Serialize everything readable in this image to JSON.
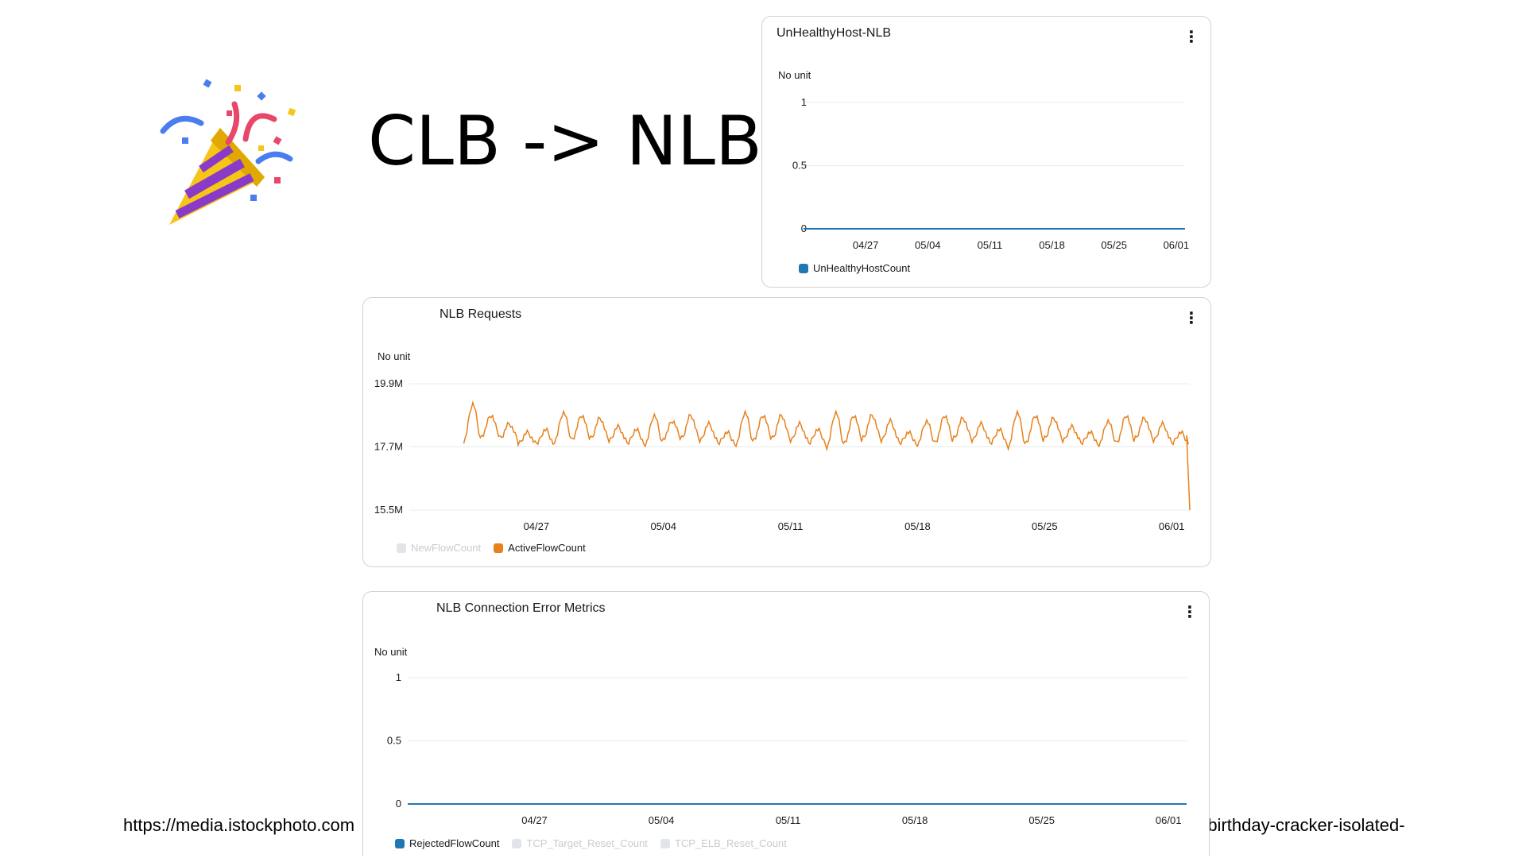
{
  "slide": {
    "title": "CLB -> NLB",
    "footnote_left": "https://media.istockphoto.com",
    "footnote_right": "-birthday-cracker-isolated-"
  },
  "colors": {
    "blue": "#1f77b4",
    "orange": "#e8811c",
    "grid": "#e9ebed",
    "text": "#16191f"
  },
  "icons": {
    "party_popper": "party-popper-icon",
    "menu": "kebab-menu-icon"
  },
  "panels": {
    "unhealthy": {
      "title": "UnHealthyHost-NLB",
      "unit": "No unit",
      "menu_glyph": "⋮"
    },
    "requests": {
      "title": "NLB Requests",
      "unit": "No unit",
      "menu_glyph": "⋮"
    },
    "errors": {
      "title": "NLB Connection Error Metrics",
      "unit": "No unit",
      "menu_glyph": "⋮"
    }
  },
  "chart_data": [
    {
      "type": "line",
      "title": "UnHealthyHost-NLB",
      "ylabel": "No unit",
      "x_ticks": [
        "04/27",
        "05/04",
        "05/11",
        "05/18",
        "05/25",
        "06/01"
      ],
      "y_ticks": [
        "1",
        "0.5",
        "0"
      ],
      "ylim": [
        0,
        1
      ],
      "grid": true,
      "legend": "bottom-left",
      "series": [
        {
          "name": "UnHealthyHostCount",
          "color": "#1f77b4",
          "active": true,
          "x": [
            "04/20",
            "06/02"
          ],
          "values": [
            0,
            0
          ]
        }
      ]
    },
    {
      "type": "line",
      "title": "NLB Requests",
      "ylabel": "No unit",
      "x_ticks": [
        "04/27",
        "05/04",
        "05/11",
        "05/18",
        "05/25",
        "06/01"
      ],
      "y_ticks": [
        "19.9M",
        "17.7M",
        "15.5M"
      ],
      "ylim": [
        15.5,
        19.9
      ],
      "grid": true,
      "legend": "bottom-left",
      "series": [
        {
          "name": "NewFlowCount",
          "color": "#c8cbcf",
          "active": false,
          "values": []
        },
        {
          "name": "ActiveFlowCount",
          "color": "#e8811c",
          "active": true,
          "x_start": "04/23",
          "x_end": "06/01",
          "daily_peak": [
            19.2,
            18.8,
            18.5,
            18.2,
            18.3,
            18.9,
            18.8,
            18.7,
            18.4,
            18.3,
            18.8,
            18.6,
            18.8,
            18.5,
            18.2,
            18.9,
            18.8,
            18.8,
            18.5,
            18.3,
            18.9,
            18.8,
            18.8,
            18.6,
            18.2,
            18.6,
            18.8,
            18.7,
            18.5,
            18.3,
            18.9,
            18.8,
            18.7,
            18.4,
            18.2,
            18.6,
            18.8,
            18.7,
            18.5,
            18.2
          ],
          "daily_trough": [
            17.9,
            18.1,
            18.0,
            17.8,
            17.8,
            17.9,
            18.0,
            18.0,
            17.9,
            17.8,
            17.8,
            18.0,
            18.0,
            17.9,
            17.8,
            17.8,
            18.0,
            18.0,
            17.9,
            17.8,
            17.7,
            17.9,
            18.0,
            17.9,
            17.8,
            17.8,
            17.9,
            18.0,
            17.9,
            17.8,
            17.7,
            17.9,
            18.0,
            17.9,
            17.8,
            17.8,
            17.9,
            18.0,
            17.9,
            17.8
          ],
          "end_values": [
            18.1,
            15.5
          ]
        }
      ]
    },
    {
      "type": "line",
      "title": "NLB Connection Error Metrics",
      "ylabel": "No unit",
      "x_ticks": [
        "04/27",
        "05/04",
        "05/11",
        "05/18",
        "05/25",
        "06/01"
      ],
      "y_ticks": [
        "1",
        "0.5",
        "0"
      ],
      "ylim": [
        0,
        1
      ],
      "grid": true,
      "legend": "bottom-left",
      "series": [
        {
          "name": "RejectedFlowCount",
          "color": "#1f77b4",
          "active": true,
          "x": [
            "04/20",
            "06/02"
          ],
          "values": [
            0,
            0
          ]
        },
        {
          "name": "TCP_Target_Reset_Count",
          "color": "#c8cbcf",
          "active": false,
          "values": []
        },
        {
          "name": "TCP_ELB_Reset_Count",
          "color": "#c8cbcf",
          "active": false,
          "values": []
        }
      ]
    }
  ]
}
